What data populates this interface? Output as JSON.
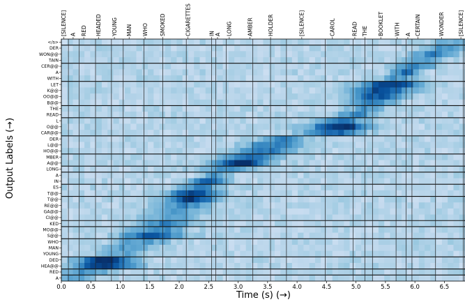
{
  "chart_data": {
    "type": "heatmap",
    "title": "",
    "xlabel": "Time (s) (→)",
    "ylabel": "Output Labels (→)",
    "xlim": [
      0.0,
      6.85
    ],
    "x_ticks": [
      "0.0",
      "0.5",
      "1.0",
      "1.5",
      "2.0",
      "2.5",
      "3.0",
      "3.5",
      "4.0",
      "4.5",
      "5.0",
      "5.5",
      "6.0",
      "6.5"
    ],
    "x_tick_values": [
      0.0,
      0.5,
      1.0,
      1.5,
      2.0,
      2.5,
      3.0,
      3.5,
      4.0,
      4.5,
      5.0,
      5.5,
      6.0,
      6.5
    ],
    "colormap": "Blues",
    "grid": false,
    "word_boundaries": [
      0.0,
      0.12,
      0.3,
      0.58,
      0.85,
      1.05,
      1.4,
      1.72,
      2.12,
      2.55,
      2.62,
      2.8,
      3.25,
      3.55,
      3.82,
      4.48,
      4.95,
      5.15,
      5.28,
      5.68,
      5.85,
      5.95,
      6.35,
      6.82
    ],
    "word_labels": [
      {
        "label": "[SILENCE]",
        "x": 0.04
      },
      {
        "label": "A",
        "x": 0.2
      },
      {
        "label": "RED",
        "x": 0.38
      },
      {
        "label": "HEADED",
        "x": 0.63
      },
      {
        "label": "YOUNG",
        "x": 0.9
      },
      {
        "label": "MAN",
        "x": 1.15
      },
      {
        "label": "WHO",
        "x": 1.42
      },
      {
        "label": "SMOKED",
        "x": 1.72
      },
      {
        "label": "CIGARETTES",
        "x": 2.15
      },
      {
        "label": "IN",
        "x": 2.55
      },
      {
        "label": "A",
        "x": 2.65
      },
      {
        "label": "LONG",
        "x": 2.85
      },
      {
        "label": "AMBER",
        "x": 3.2
      },
      {
        "label": "HOLDER",
        "x": 3.55
      },
      {
        "label": "[SILENCE]",
        "x": 4.08
      },
      {
        "label": "CAROL",
        "x": 4.6
      },
      {
        "label": "READ",
        "x": 4.98
      },
      {
        "label": "THE",
        "x": 5.15
      },
      {
        "label": "BOOKLET",
        "x": 5.42
      },
      {
        "label": "WITH",
        "x": 5.7
      },
      {
        "label": "A",
        "x": 5.88
      },
      {
        "label": "CERTAIN",
        "x": 6.05
      },
      {
        "label": "WONDER",
        "x": 6.45
      },
      {
        "label": "[SILENCE]",
        "x": 6.78
      }
    ],
    "row_labels": [
      "</s>",
      "DER",
      "WON@@",
      "TAIN",
      "CER@@",
      "A",
      "WITH",
      "LET",
      "K@@",
      "OO@@",
      "B@@",
      "THE",
      "READ",
      "L",
      "O@@",
      "CAR@@",
      "DER",
      "L@@",
      "HO@@",
      "MBER",
      "A@@",
      "LONG",
      "A",
      "IN",
      "ES",
      "T@@",
      "T@@",
      "RE@@",
      "GA@@",
      "CI@@",
      "KED",
      "MO@@",
      "S@@",
      "WHO",
      "MAN",
      "YOUNG",
      "DED",
      "HEA@@",
      "RED",
      "A"
    ],
    "row_separators_after": [
      "</s>",
      "TAIN",
      "WITH",
      "B@@",
      "READ",
      "CAR@@",
      "HO@@",
      "A@@",
      "LONG",
      "IN",
      "T@@",
      "CI@@",
      "KED",
      "S@@",
      "YOUNG",
      "HEA@@",
      "RED"
    ],
    "attention_peaks": [
      {
        "row": "</s>",
        "x": 6.7,
        "w": 0.3,
        "v": 0.4
      },
      {
        "row": "DER",
        "x": 6.5,
        "w": 0.25,
        "v": 0.5
      },
      {
        "row": "WON@@",
        "x": 6.35,
        "w": 0.25,
        "v": 0.6
      },
      {
        "row": "TAIN",
        "x": 6.15,
        "w": 0.25,
        "v": 0.45
      },
      {
        "row": "CER@@",
        "x": 6.0,
        "w": 0.25,
        "v": 0.55
      },
      {
        "row": "A",
        "x": 5.85,
        "w": 0.15,
        "v": 0.7
      },
      {
        "row": "WITH",
        "x": 5.72,
        "w": 0.2,
        "v": 0.5
      },
      {
        "row": "LET",
        "x": 5.6,
        "w": 0.35,
        "v": 0.85
      },
      {
        "row": "K@@",
        "x": 5.45,
        "w": 0.35,
        "v": 0.8
      },
      {
        "row": "OO@@",
        "x": 5.35,
        "w": 0.3,
        "v": 0.75
      },
      {
        "row": "B@@",
        "x": 5.25,
        "w": 0.3,
        "v": 0.6
      },
      {
        "row": "THE",
        "x": 5.15,
        "w": 0.2,
        "v": 0.5
      },
      {
        "row": "READ",
        "x": 5.0,
        "w": 0.25,
        "v": 0.55
      },
      {
        "row": "L",
        "x": 4.75,
        "w": 0.3,
        "v": 0.6
      },
      {
        "row": "O@@",
        "x": 4.75,
        "w": 0.35,
        "v": 0.9
      },
      {
        "row": "CAR@@",
        "x": 4.6,
        "w": 0.35,
        "v": 0.7
      },
      {
        "row": "DER",
        "x": 3.75,
        "w": 0.3,
        "v": 0.55
      },
      {
        "row": "L@@",
        "x": 3.6,
        "w": 0.35,
        "v": 0.6
      },
      {
        "row": "HO@@",
        "x": 3.45,
        "w": 0.35,
        "v": 0.6
      },
      {
        "row": "MBER",
        "x": 3.2,
        "w": 0.35,
        "v": 0.7
      },
      {
        "row": "A@@",
        "x": 3.05,
        "w": 0.3,
        "v": 0.95
      },
      {
        "row": "LONG",
        "x": 2.85,
        "w": 0.3,
        "v": 0.55
      },
      {
        "row": "A",
        "x": 2.65,
        "w": 0.15,
        "v": 0.5
      },
      {
        "row": "IN",
        "x": 2.5,
        "w": 0.2,
        "v": 0.7
      },
      {
        "row": "ES",
        "x": 2.35,
        "w": 0.25,
        "v": 0.55
      },
      {
        "row": "T@@",
        "x": 2.25,
        "w": 0.3,
        "v": 0.8
      },
      {
        "row": "T@@",
        "x": 2.2,
        "w": 0.3,
        "v": 0.85
      },
      {
        "row": "RE@@",
        "x": 2.1,
        "w": 0.3,
        "v": 0.55
      },
      {
        "row": "GA@@",
        "x": 2.0,
        "w": 0.3,
        "v": 0.5
      },
      {
        "row": "CI@@",
        "x": 1.85,
        "w": 0.3,
        "v": 0.5
      },
      {
        "row": "KED",
        "x": 1.8,
        "w": 0.3,
        "v": 0.6
      },
      {
        "row": "MO@@",
        "x": 1.65,
        "w": 0.3,
        "v": 0.55
      },
      {
        "row": "S@@",
        "x": 1.55,
        "w": 0.35,
        "v": 0.75
      },
      {
        "row": "WHO",
        "x": 1.35,
        "w": 0.3,
        "v": 0.5
      },
      {
        "row": "MAN",
        "x": 1.15,
        "w": 0.3,
        "v": 0.45
      },
      {
        "row": "YOUNG",
        "x": 0.95,
        "w": 0.3,
        "v": 0.45
      },
      {
        "row": "DED",
        "x": 0.75,
        "w": 0.3,
        "v": 0.95
      },
      {
        "row": "HEA@@",
        "x": 0.7,
        "w": 0.35,
        "v": 0.9
      },
      {
        "row": "RED",
        "x": 0.45,
        "w": 0.3,
        "v": 0.5
      },
      {
        "row": "A",
        "x": 0.25,
        "w": 0.2,
        "v": 0.45
      }
    ]
  }
}
